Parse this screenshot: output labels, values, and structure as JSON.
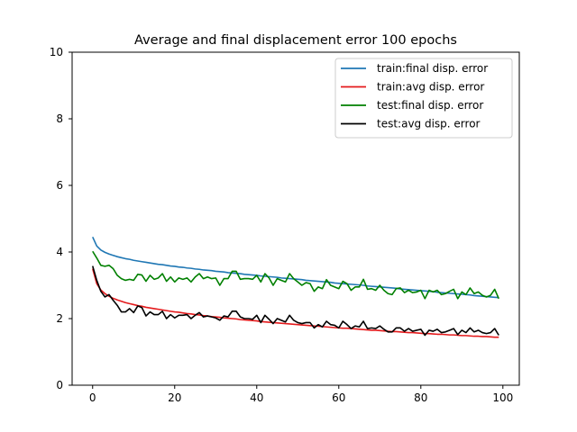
{
  "chart_data": {
    "type": "line",
    "title": "Average and final displacement error 100 epochs",
    "xlabel": "",
    "ylabel": "",
    "xlim": [
      -5,
      104
    ],
    "ylim": [
      0,
      10
    ],
    "xticks": [
      0,
      20,
      40,
      60,
      80,
      100
    ],
    "yticks": [
      0,
      2,
      4,
      6,
      8,
      10
    ],
    "grid": false,
    "legend_position": "top-right",
    "series": [
      {
        "name": "train:final disp. error",
        "color": "#1f77b4",
        "values": [
          4.45,
          4.18,
          4.06,
          3.99,
          3.94,
          3.9,
          3.86,
          3.83,
          3.8,
          3.78,
          3.75,
          3.73,
          3.71,
          3.69,
          3.67,
          3.65,
          3.63,
          3.62,
          3.6,
          3.58,
          3.57,
          3.55,
          3.54,
          3.52,
          3.51,
          3.49,
          3.48,
          3.46,
          3.45,
          3.44,
          3.42,
          3.41,
          3.4,
          3.38,
          3.37,
          3.36,
          3.35,
          3.33,
          3.32,
          3.31,
          3.3,
          3.28,
          3.27,
          3.26,
          3.25,
          3.24,
          3.22,
          3.21,
          3.2,
          3.19,
          3.18,
          3.17,
          3.15,
          3.14,
          3.13,
          3.12,
          3.11,
          3.1,
          3.09,
          3.07,
          3.06,
          3.05,
          3.04,
          3.03,
          3.02,
          3.01,
          3.0,
          2.98,
          2.97,
          2.96,
          2.95,
          2.94,
          2.93,
          2.92,
          2.91,
          2.89,
          2.88,
          2.87,
          2.86,
          2.85,
          2.84,
          2.83,
          2.82,
          2.81,
          2.79,
          2.78,
          2.77,
          2.76,
          2.75,
          2.74,
          2.73,
          2.72,
          2.71,
          2.69,
          2.68,
          2.67,
          2.66,
          2.65,
          2.64,
          2.63
        ]
      },
      {
        "name": "train:avg disp. error",
        "color": "#e41a1c",
        "values": [
          3.5,
          3.05,
          2.86,
          2.75,
          2.67,
          2.61,
          2.56,
          2.52,
          2.48,
          2.45,
          2.42,
          2.39,
          2.37,
          2.34,
          2.32,
          2.3,
          2.28,
          2.26,
          2.24,
          2.22,
          2.2,
          2.19,
          2.17,
          2.15,
          2.14,
          2.12,
          2.11,
          2.09,
          2.08,
          2.06,
          2.05,
          2.04,
          2.02,
          2.01,
          2.0,
          1.99,
          1.97,
          1.96,
          1.95,
          1.94,
          1.93,
          1.91,
          1.9,
          1.89,
          1.88,
          1.87,
          1.86,
          1.85,
          1.84,
          1.83,
          1.82,
          1.81,
          1.8,
          1.79,
          1.78,
          1.77,
          1.76,
          1.75,
          1.74,
          1.73,
          1.72,
          1.71,
          1.71,
          1.7,
          1.69,
          1.68,
          1.67,
          1.66,
          1.65,
          1.65,
          1.64,
          1.63,
          1.62,
          1.61,
          1.61,
          1.6,
          1.59,
          1.58,
          1.58,
          1.57,
          1.56,
          1.55,
          1.55,
          1.54,
          1.53,
          1.53,
          1.52,
          1.51,
          1.51,
          1.5,
          1.49,
          1.49,
          1.48,
          1.47,
          1.47,
          1.46,
          1.46,
          1.45,
          1.44,
          1.44
        ]
      },
      {
        "name": "test:final disp. error",
        "color": "#008000",
        "values": [
          4.02,
          3.82,
          3.6,
          3.57,
          3.6,
          3.5,
          3.3,
          3.2,
          3.15,
          3.18,
          3.15,
          3.33,
          3.31,
          3.12,
          3.3,
          3.18,
          3.22,
          3.35,
          3.12,
          3.25,
          3.1,
          3.22,
          3.18,
          3.22,
          3.1,
          3.25,
          3.35,
          3.2,
          3.25,
          3.2,
          3.22,
          3.0,
          3.2,
          3.2,
          3.42,
          3.42,
          3.18,
          3.2,
          3.2,
          3.18,
          3.3,
          3.1,
          3.35,
          3.22,
          3.0,
          3.2,
          3.15,
          3.1,
          3.35,
          3.2,
          3.1,
          3.0,
          3.08,
          3.05,
          2.82,
          2.95,
          2.9,
          3.17,
          3.0,
          2.95,
          2.9,
          3.12,
          3.05,
          2.85,
          2.95,
          2.95,
          3.18,
          2.88,
          2.9,
          2.85,
          3.0,
          2.85,
          2.75,
          2.72,
          2.9,
          2.92,
          2.78,
          2.85,
          2.78,
          2.8,
          2.85,
          2.6,
          2.85,
          2.8,
          2.85,
          2.72,
          2.75,
          2.82,
          2.88,
          2.6,
          2.8,
          2.72,
          2.92,
          2.75,
          2.8,
          2.7,
          2.65,
          2.7,
          2.88,
          2.6
        ]
      },
      {
        "name": "test:avg disp. error",
        "color": "#000000",
        "values": [
          3.58,
          3.15,
          2.82,
          2.65,
          2.72,
          2.55,
          2.4,
          2.2,
          2.2,
          2.3,
          2.18,
          2.38,
          2.33,
          2.08,
          2.2,
          2.12,
          2.12,
          2.22,
          2.0,
          2.12,
          2.02,
          2.1,
          2.1,
          2.12,
          2.0,
          2.1,
          2.18,
          2.05,
          2.08,
          2.05,
          2.02,
          1.95,
          2.08,
          2.05,
          2.22,
          2.22,
          2.05,
          2.0,
          2.0,
          1.98,
          2.1,
          1.88,
          2.1,
          1.98,
          1.85,
          2.0,
          1.95,
          1.9,
          2.1,
          1.95,
          1.88,
          1.85,
          1.88,
          1.88,
          1.72,
          1.82,
          1.75,
          1.92,
          1.82,
          1.8,
          1.72,
          1.92,
          1.82,
          1.7,
          1.78,
          1.75,
          1.92,
          1.7,
          1.72,
          1.7,
          1.78,
          1.68,
          1.6,
          1.6,
          1.72,
          1.72,
          1.62,
          1.7,
          1.62,
          1.65,
          1.68,
          1.5,
          1.65,
          1.62,
          1.68,
          1.58,
          1.6,
          1.65,
          1.7,
          1.52,
          1.65,
          1.58,
          1.72,
          1.6,
          1.65,
          1.58,
          1.55,
          1.58,
          1.7,
          1.5
        ]
      }
    ]
  }
}
